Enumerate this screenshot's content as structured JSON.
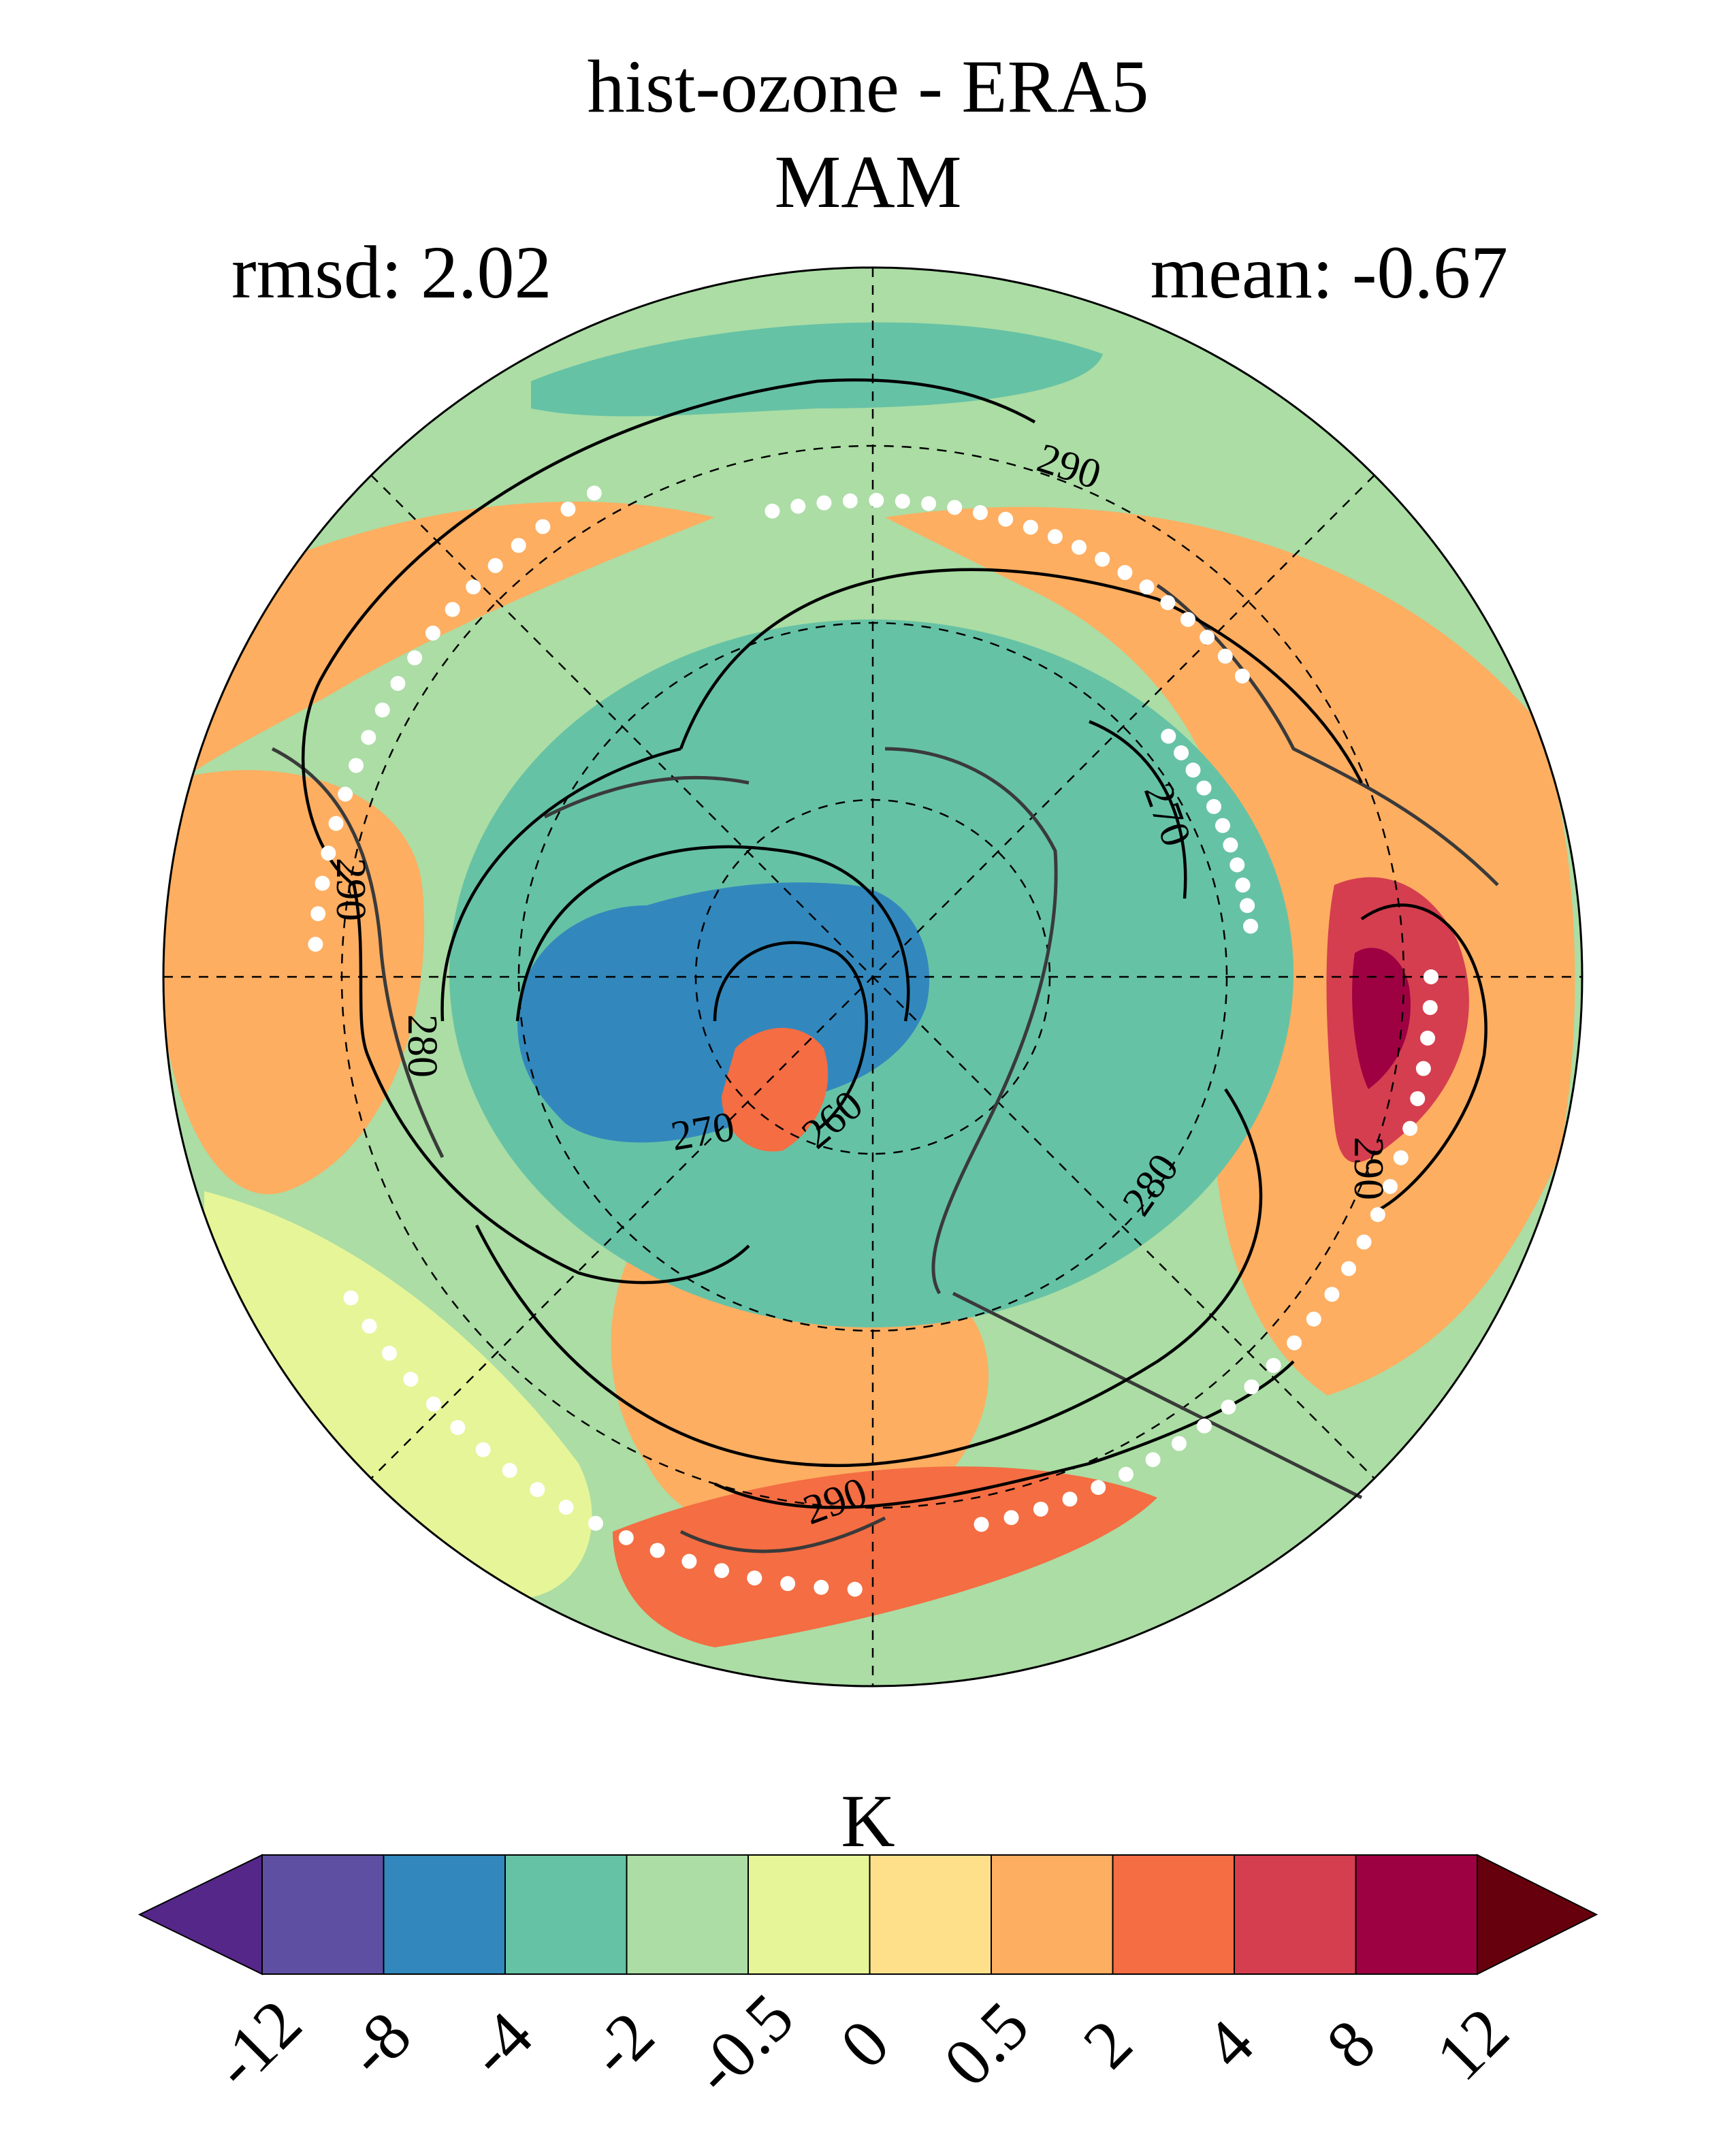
{
  "title": "hist-ozone - ERA5",
  "subtitle": "MAM",
  "stats": {
    "rmsd_label": "rmsd: 2.02",
    "mean_label": "mean: -0.67"
  },
  "contour_labels": [
    "290",
    "270",
    "290",
    "280",
    "270",
    "260",
    "280",
    "290",
    "290"
  ],
  "colorbar": {
    "unit": "K",
    "tick_labels": [
      "-12",
      "-8",
      "-4",
      "-2",
      "-0.5",
      "0",
      "0.5",
      "2",
      "4",
      "8",
      "12"
    ],
    "colors": [
      "#5e4fa2",
      "#3288bd",
      "#66c2a5",
      "#abdda4",
      "#e6f598",
      "#fee08b",
      "#fdae61",
      "#f46d43",
      "#d53e4f",
      "#9e0142"
    ],
    "under_color": "#542788",
    "over_color": "#67000d"
  },
  "map_colors": {
    "coastline": "#3a3a3a",
    "contour": "#000000",
    "stipple": "#ffffff",
    "grid": "#000000"
  }
}
